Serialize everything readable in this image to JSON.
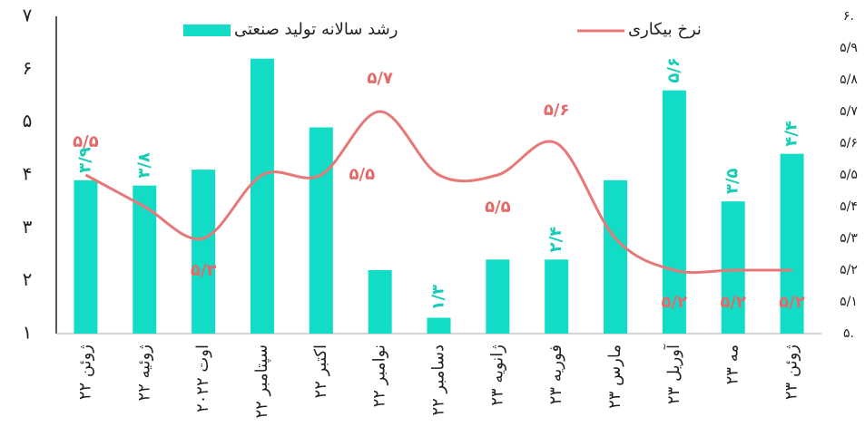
{
  "chart_data": {
    "type": "bar_line",
    "categories": [
      "ژوئن ۲۲",
      "ژوئیه ۲۲",
      "اوت ۲۰۲۲",
      "سپتامبر ۲۲",
      "اکتبر ۲۲",
      "نوامبر ۲۲",
      "دسامبر ۲۲",
      "ژانویه ۲۳",
      "فوریه ۲۳",
      "مارس ۲۳",
      "آوریل ۲۳",
      "مه ۲۳",
      "ژوئن ۲۳"
    ],
    "series": [
      {
        "name": "رشد سالانه تولید صنعتی",
        "type": "bar",
        "color": "#12dcc6",
        "label_color": "#17cdb6",
        "values": [
          3.9,
          3.8,
          4.1,
          6.2,
          4.9,
          2.2,
          1.3,
          2.4,
          2.4,
          3.9,
          5.6,
          3.5,
          4.4
        ],
        "value_labels": [
          "۳/۹",
          "۳/۸",
          null,
          null,
          null,
          null,
          "۱/۳",
          null,
          "۲/۴",
          null,
          "۵/۶",
          "۳/۵",
          "۴/۴"
        ]
      },
      {
        "name": "نرخ بیکاری",
        "type": "line",
        "axis": "y2",
        "color": "#e87878",
        "label_color": "#e46a6a",
        "values": [
          5.5,
          5.4,
          5.3,
          5.5,
          5.5,
          5.7,
          5.5,
          5.5,
          5.6,
          5.3,
          5.2,
          5.2,
          5.2
        ],
        "value_labels": [
          "۵/۵",
          null,
          "۵/۳",
          null,
          "۵/۵",
          "۵/۷",
          null,
          "۵/۵",
          "۵/۶",
          null,
          "۵/۲",
          "۵/۲",
          "۵/۲"
        ]
      }
    ],
    "ylim": [
      1,
      7
    ],
    "yticks": [
      {
        "value": 1,
        "label": "۱"
      },
      {
        "value": 2,
        "label": "۲"
      },
      {
        "value": 3,
        "label": "۳"
      },
      {
        "value": 4,
        "label": "۴"
      },
      {
        "value": 5,
        "label": "۵"
      },
      {
        "value": 6,
        "label": "۶"
      },
      {
        "value": 7,
        "label": "۷"
      }
    ],
    "y2lim": [
      5,
      6
    ],
    "y2ticks": [
      {
        "value": 5,
        "label": "۵."
      },
      {
        "value": 5.1,
        "label": "۵/۱"
      },
      {
        "value": 5.2,
        "label": "۵/۲"
      },
      {
        "value": 5.3,
        "label": "۵/۳"
      },
      {
        "value": 5.4,
        "label": "۵/۴"
      },
      {
        "value": 5.5,
        "label": "۵/۵"
      },
      {
        "value": 5.6,
        "label": "۵/۶"
      },
      {
        "value": 5.7,
        "label": "۵/۷"
      },
      {
        "value": 5.8,
        "label": "۵/۸"
      },
      {
        "value": 5.9,
        "label": "۵/۹"
      },
      {
        "value": 6,
        "label": "۶."
      }
    ]
  }
}
